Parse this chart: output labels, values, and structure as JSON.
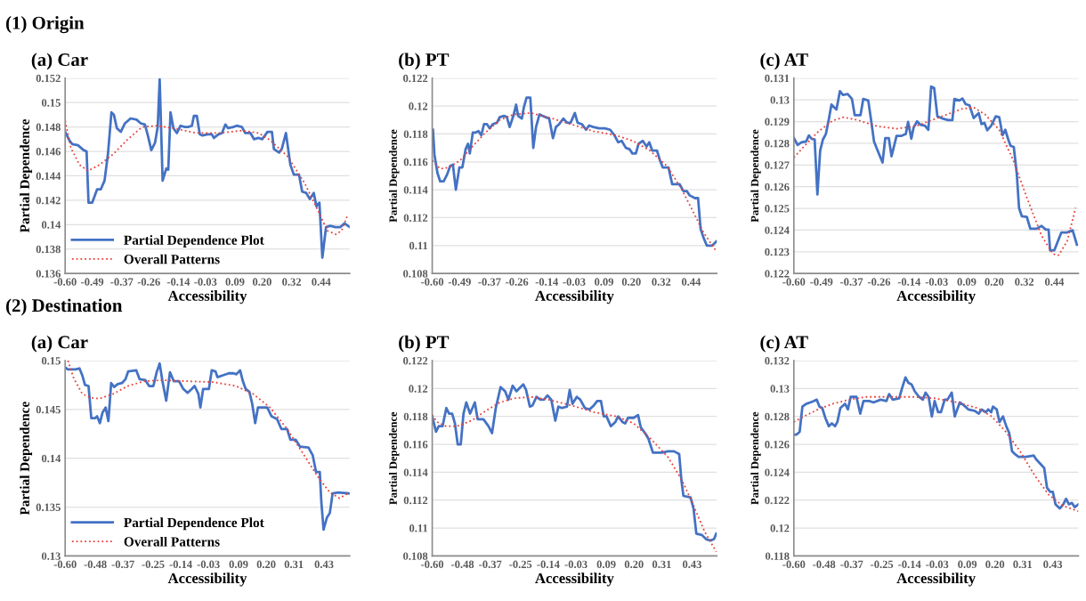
{
  "chart_data": [
    {
      "type": "line",
      "title": "(a) Car",
      "annotations": [
        "(1) Origin"
      ],
      "xlabel": "Accessibility",
      "ylabel": "Partial Dependence",
      "grid": "y",
      "legend": "bottom left",
      "xlim": [
        -0.6,
        0.556
      ],
      "xticks": [
        {
          "value": -0.6,
          "label": "-0.60"
        },
        {
          "value": -0.49,
          "label": "-0.49"
        },
        {
          "value": -0.37,
          "label": "-0.37"
        },
        {
          "value": -0.26,
          "label": "-0.26"
        },
        {
          "value": -0.14,
          "label": "-0.14"
        },
        {
          "value": -0.03,
          "label": "-0.03"
        },
        {
          "value": 0.09,
          "label": "0.09"
        },
        {
          "value": 0.2,
          "label": "0.20"
        },
        {
          "value": 0.32,
          "label": "0.32"
        },
        {
          "value": 0.44,
          "label": "0.44"
        }
      ],
      "ylim": [
        0.136,
        0.152
      ],
      "yticks": [
        0.136,
        0.138,
        0.14,
        0.142,
        0.144,
        0.146,
        0.148,
        0.15,
        0.152
      ],
      "series": [
        {
          "name": "Partial Dependence Plot",
          "color": "#4472c4",
          "line_style": "solid",
          "x": [
            -0.6,
            -0.583,
            -0.571,
            -0.548,
            -0.525,
            -0.513,
            -0.505,
            -0.49,
            -0.47,
            -0.455,
            -0.44,
            -0.426,
            -0.412,
            -0.402,
            -0.39,
            -0.374,
            -0.357,
            -0.334,
            -0.31,
            -0.293,
            -0.276,
            -0.264,
            -0.25,
            -0.235,
            -0.224,
            -0.216,
            -0.204,
            -0.189,
            -0.181,
            -0.172,
            -0.16,
            -0.146,
            -0.131,
            -0.114,
            -0.1,
            -0.085,
            -0.077,
            -0.065,
            -0.053,
            -0.042,
            -0.021,
            -0.004,
            0.004,
            0.023,
            0.037,
            0.051,
            0.062,
            0.083,
            0.097,
            0.118,
            0.132,
            0.153,
            0.167,
            0.185,
            0.201,
            0.222,
            0.24,
            0.248,
            0.269,
            0.28,
            0.297,
            0.315,
            0.329,
            0.35,
            0.363,
            0.379,
            0.394,
            0.41,
            0.421,
            0.433,
            0.445,
            0.46,
            0.477,
            0.498,
            0.518,
            0.535,
            0.556
          ],
          "values": [
            0.1476,
            0.1469,
            0.1466,
            0.1465,
            0.1461,
            0.146,
            0.1418,
            0.1418,
            0.1429,
            0.1429,
            0.1436,
            0.1458,
            0.1492,
            0.149,
            0.1479,
            0.1476,
            0.1483,
            0.1487,
            0.1486,
            0.1483,
            0.1482,
            0.1473,
            0.1461,
            0.1467,
            0.148,
            0.1519,
            0.1436,
            0.1446,
            0.1445,
            0.1492,
            0.1479,
            0.1475,
            0.1481,
            0.148,
            0.148,
            0.1481,
            0.1489,
            0.1489,
            0.1474,
            0.1473,
            0.1474,
            0.1474,
            0.1471,
            0.1474,
            0.1475,
            0.1482,
            0.1479,
            0.148,
            0.1481,
            0.148,
            0.1475,
            0.1475,
            0.147,
            0.1471,
            0.147,
            0.1476,
            0.1476,
            0.1462,
            0.1459,
            0.1462,
            0.1475,
            0.1449,
            0.1441,
            0.1441,
            0.1427,
            0.1426,
            0.1421,
            0.1426,
            0.1415,
            0.1418,
            0.1373,
            0.1398,
            0.1399,
            0.1398,
            0.1398,
            0.1401,
            0.1398
          ]
        },
        {
          "name": "Overall Patterns",
          "color": "#e8403a",
          "line_style": "dotted",
          "x": [
            -0.6,
            -0.577,
            -0.542,
            -0.507,
            -0.461,
            -0.403,
            -0.345,
            -0.287,
            -0.229,
            -0.16,
            -0.067,
            0.025,
            0.118,
            0.187,
            0.234,
            0.303,
            0.373,
            0.431,
            0.465,
            0.5,
            0.523,
            0.546
          ],
          "values": [
            0.1485,
            0.1463,
            0.1449,
            0.1444,
            0.1449,
            0.1458,
            0.147,
            0.148,
            0.1481,
            0.1479,
            0.1475,
            0.1475,
            0.1477,
            0.1475,
            0.1469,
            0.1456,
            0.1434,
            0.141,
            0.1395,
            0.1392,
            0.1395,
            0.1407
          ]
        }
      ]
    },
    {
      "type": "line",
      "title": "(b) PT",
      "xlabel": "Accessibility",
      "ylabel": "Partial Dependence",
      "grid": "y",
      "xlim": [
        -0.6,
        0.543
      ],
      "xticks": [
        {
          "value": -0.6,
          "label": "-0.60"
        },
        {
          "value": -0.49,
          "label": "-0.49"
        },
        {
          "value": -0.37,
          "label": "-0.37"
        },
        {
          "value": -0.26,
          "label": "-0.26"
        },
        {
          "value": -0.14,
          "label": "-0.14"
        },
        {
          "value": -0.03,
          "label": "-0.03"
        },
        {
          "value": 0.09,
          "label": "0.09"
        },
        {
          "value": 0.2,
          "label": "0.20"
        },
        {
          "value": 0.32,
          "label": "0.32"
        },
        {
          "value": 0.44,
          "label": "0.44"
        }
      ],
      "ylim": [
        0.108,
        0.122
      ],
      "yticks": [
        0.108,
        0.11,
        0.112,
        0.114,
        0.116,
        0.118,
        0.12,
        0.122
      ],
      "series": [
        {
          "color": "#4472c4",
          "line_style": "solid",
          "x": [
            -0.597,
            -0.591,
            -0.579,
            -0.568,
            -0.554,
            -0.54,
            -0.528,
            -0.517,
            -0.505,
            -0.491,
            -0.479,
            -0.466,
            -0.456,
            -0.449,
            -0.437,
            -0.426,
            -0.414,
            -0.403,
            -0.392,
            -0.38,
            -0.369,
            -0.357,
            -0.34,
            -0.329,
            -0.312,
            -0.3,
            -0.289,
            -0.274,
            -0.263,
            -0.255,
            -0.24,
            -0.232,
            -0.221,
            -0.206,
            -0.194,
            -0.183,
            -0.169,
            -0.158,
            -0.144,
            -0.13,
            -0.115,
            -0.103,
            -0.09,
            -0.073,
            -0.058,
            -0.044,
            -0.027,
            -0.016,
            0.001,
            0.018,
            0.03,
            0.047,
            0.07,
            0.093,
            0.115,
            0.132,
            0.147,
            0.161,
            0.178,
            0.193,
            0.204,
            0.218,
            0.229,
            0.246,
            0.261,
            0.272,
            0.284,
            0.303,
            0.315,
            0.326,
            0.349,
            0.364,
            0.394,
            0.409,
            0.423,
            0.434,
            0.455,
            0.468,
            0.478,
            0.489,
            0.503,
            0.525,
            0.542
          ],
          "values": [
            0.1183,
            0.1165,
            0.1152,
            0.1146,
            0.1146,
            0.1151,
            0.1157,
            0.1158,
            0.114,
            0.1156,
            0.1156,
            0.1169,
            0.1173,
            0.1166,
            0.1181,
            0.1181,
            0.1182,
            0.1179,
            0.1187,
            0.1187,
            0.1184,
            0.1187,
            0.1188,
            0.1192,
            0.1193,
            0.1192,
            0.1185,
            0.1193,
            0.1201,
            0.1193,
            0.1191,
            0.1199,
            0.1206,
            0.1206,
            0.117,
            0.1185,
            0.1194,
            0.1193,
            0.1192,
            0.1191,
            0.1177,
            0.1185,
            0.1187,
            0.1191,
            0.1188,
            0.1188,
            0.1195,
            0.1188,
            0.1187,
            0.1183,
            0.1186,
            0.1185,
            0.1184,
            0.1184,
            0.1183,
            0.1179,
            0.1174,
            0.1175,
            0.117,
            0.1169,
            0.1166,
            0.1166,
            0.1173,
            0.1175,
            0.1171,
            0.1174,
            0.1168,
            0.1168,
            0.1161,
            0.1156,
            0.1156,
            0.1144,
            0.1144,
            0.1139,
            0.1139,
            0.1136,
            0.1134,
            0.1134,
            0.1112,
            0.1106,
            0.11,
            0.11,
            0.1103
          ]
        },
        {
          "color": "#e8403a",
          "line_style": "dotted",
          "x": [
            -0.6,
            -0.568,
            -0.534,
            -0.488,
            -0.443,
            -0.386,
            -0.329,
            -0.272,
            -0.204,
            -0.135,
            -0.044,
            0.047,
            0.138,
            0.206,
            0.275,
            0.343,
            0.4,
            0.446,
            0.491,
            0.537
          ],
          "values": [
            0.1161,
            0.1155,
            0.1156,
            0.1161,
            0.117,
            0.1181,
            0.119,
            0.1194,
            0.1195,
            0.1192,
            0.1187,
            0.1182,
            0.1179,
            0.1175,
            0.1168,
            0.1157,
            0.1141,
            0.1125,
            0.1109,
            0.1097
          ]
        }
      ]
    },
    {
      "type": "line",
      "title": "(c) AT",
      "xlabel": "Accessibility",
      "ylabel": "Partial Dependence",
      "grid": "y",
      "xlim": [
        -0.6,
        0.536
      ],
      "xticks": [
        {
          "value": -0.6,
          "label": "-0.60"
        },
        {
          "value": -0.49,
          "label": "-0.49"
        },
        {
          "value": -0.37,
          "label": "-0.37"
        },
        {
          "value": -0.26,
          "label": "-0.26"
        },
        {
          "value": -0.14,
          "label": "-0.14"
        },
        {
          "value": -0.03,
          "label": "-0.03"
        },
        {
          "value": 0.09,
          "label": "0.09"
        },
        {
          "value": 0.2,
          "label": "0.20"
        },
        {
          "value": 0.32,
          "label": "0.32"
        },
        {
          "value": 0.44,
          "label": "0.44"
        }
      ],
      "ylim": [
        0.122,
        0.131
      ],
      "yticks": [
        0.122,
        0.123,
        0.124,
        0.125,
        0.126,
        0.127,
        0.128,
        0.129,
        0.13,
        0.131
      ],
      "series": [
        {
          "color": "#4472c4",
          "line_style": "solid",
          "x": [
            -0.6,
            -0.585,
            -0.57,
            -0.551,
            -0.54,
            -0.529,
            -0.517,
            -0.506,
            -0.495,
            -0.484,
            -0.472,
            -0.461,
            -0.45,
            -0.43,
            -0.416,
            -0.404,
            -0.385,
            -0.368,
            -0.357,
            -0.334,
            -0.323,
            -0.303,
            -0.291,
            -0.28,
            -0.261,
            -0.246,
            -0.235,
            -0.221,
            -0.21,
            -0.19,
            -0.17,
            -0.153,
            -0.144,
            -0.131,
            -0.122,
            -0.108,
            -0.095,
            -0.077,
            -0.063,
            -0.052,
            -0.04,
            -0.027,
            -0.007,
            0.016,
            0.033,
            0.041,
            0.061,
            0.073,
            0.086,
            0.101,
            0.118,
            0.138,
            0.149,
            0.161,
            0.172,
            0.188,
            0.206,
            0.22,
            0.233,
            0.244,
            0.256,
            0.265,
            0.278,
            0.29,
            0.299,
            0.31,
            0.33,
            0.344,
            0.369,
            0.389,
            0.406,
            0.417,
            0.423,
            0.44,
            0.468,
            0.491,
            0.513,
            0.53
          ],
          "values": [
            0.12824,
            0.12792,
            0.12804,
            0.12808,
            0.12836,
            0.1282,
            0.12817,
            0.12564,
            0.12766,
            0.12817,
            0.12843,
            0.12907,
            0.12978,
            0.12955,
            0.1304,
            0.13023,
            0.13027,
            0.13004,
            0.12929,
            0.12929,
            0.13004,
            0.12997,
            0.12901,
            0.12808,
            0.12753,
            0.12711,
            0.12824,
            0.12824,
            0.1274,
            0.12834,
            0.12834,
            0.12843,
            0.12898,
            0.12821,
            0.12872,
            0.12901,
            0.12885,
            0.12881,
            0.12862,
            0.13061,
            0.13055,
            0.12924,
            0.12914,
            0.12907,
            0.12907,
            0.13004,
            0.12997,
            0.13006,
            0.1298,
            0.12975,
            0.12916,
            0.12939,
            0.12888,
            0.12894,
            0.1286,
            0.12881,
            0.12924,
            0.1292,
            0.12837,
            0.12862,
            0.12817,
            0.12788,
            0.12783,
            0.12659,
            0.12502,
            0.12464,
            0.12461,
            0.12406,
            0.12406,
            0.12419,
            0.12402,
            0.12402,
            0.12307,
            0.12307,
            0.12389,
            0.12389,
            0.12399,
            0.12333
          ]
        },
        {
          "color": "#e8403a",
          "line_style": "dotted",
          "x": [
            -0.6,
            -0.56,
            -0.504,
            -0.447,
            -0.402,
            -0.346,
            -0.267,
            -0.187,
            -0.108,
            -0.018,
            0.073,
            0.118,
            0.163,
            0.22,
            0.276,
            0.333,
            0.389,
            0.434,
            0.457,
            0.491,
            0.525
          ],
          "values": [
            0.12734,
            0.12785,
            0.12852,
            0.12903,
            0.1292,
            0.12907,
            0.12878,
            0.12867,
            0.12881,
            0.1292,
            0.12959,
            0.12965,
            0.12933,
            0.12862,
            0.12721,
            0.12541,
            0.12374,
            0.1229,
            0.12284,
            0.12348,
            0.12502
          ]
        }
      ]
    },
    {
      "type": "line",
      "title": "(a) Car",
      "annotations": [
        "(2) Destination"
      ],
      "xlabel": "Accessibility",
      "ylabel": "Partial Dependence",
      "grid": "y",
      "legend": "bottom left",
      "xlim": [
        -0.6,
        0.532
      ],
      "xticks": [
        {
          "value": -0.6,
          "label": "-0.60"
        },
        {
          "value": -0.48,
          "label": "-0.48"
        },
        {
          "value": -0.37,
          "label": "-0.37"
        },
        {
          "value": -0.25,
          "label": "-0.25"
        },
        {
          "value": -0.14,
          "label": "-0.14"
        },
        {
          "value": -0.03,
          "label": "-0.03"
        },
        {
          "value": 0.09,
          "label": "0.09"
        },
        {
          "value": 0.2,
          "label": "0.20"
        },
        {
          "value": 0.31,
          "label": "0.31"
        },
        {
          "value": 0.43,
          "label": "0.43"
        }
      ],
      "ylim": [
        0.13,
        0.15
      ],
      "yticks": [
        0.13,
        0.135,
        0.14,
        0.145,
        0.15
      ],
      "series": [
        {
          "name": "Partial Dependence Plot",
          "color": "#4472c4",
          "line_style": "solid",
          "x": [
            -0.6,
            -0.589,
            -0.56,
            -0.543,
            -0.532,
            -0.521,
            -0.507,
            -0.496,
            -0.481,
            -0.473,
            -0.462,
            -0.451,
            -0.439,
            -0.428,
            -0.417,
            -0.405,
            -0.391,
            -0.374,
            -0.36,
            -0.349,
            -0.317,
            -0.304,
            -0.281,
            -0.266,
            -0.249,
            -0.236,
            -0.224,
            -0.213,
            -0.198,
            -0.183,
            -0.168,
            -0.147,
            -0.13,
            -0.113,
            -0.096,
            -0.085,
            -0.07,
            -0.062,
            -0.051,
            -0.028,
            -0.017,
            -0.002,
            0.006,
            0.028,
            0.051,
            0.07,
            0.081,
            0.096,
            0.107,
            0.118,
            0.133,
            0.144,
            0.156,
            0.167,
            0.204,
            0.221,
            0.243,
            0.26,
            0.283,
            0.296,
            0.317,
            0.334,
            0.368,
            0.385,
            0.398,
            0.413,
            0.419,
            0.428,
            0.441,
            0.453,
            0.464,
            0.487,
            0.53
          ],
          "values": [
            0.1493,
            0.1491,
            0.1491,
            0.1492,
            0.1485,
            0.1475,
            0.1474,
            0.1441,
            0.1441,
            0.1443,
            0.1436,
            0.1447,
            0.1452,
            0.1438,
            0.1477,
            0.1473,
            0.1476,
            0.1477,
            0.1481,
            0.1489,
            0.149,
            0.1481,
            0.148,
            0.1474,
            0.1474,
            0.1488,
            0.1497,
            0.1479,
            0.1459,
            0.1488,
            0.1479,
            0.1479,
            0.1471,
            0.1467,
            0.1471,
            0.1474,
            0.1466,
            0.1452,
            0.1471,
            0.1471,
            0.149,
            0.1489,
            0.1483,
            0.1485,
            0.1487,
            0.1487,
            0.1486,
            0.149,
            0.1479,
            0.1471,
            0.1468,
            0.1456,
            0.1436,
            0.1452,
            0.1452,
            0.1443,
            0.144,
            0.143,
            0.143,
            0.1419,
            0.1419,
            0.1412,
            0.1411,
            0.1403,
            0.1386,
            0.1386,
            0.1356,
            0.1327,
            0.1339,
            0.1344,
            0.1364,
            0.1365,
            0.1364
          ]
        },
        {
          "name": "Overall Patterns",
          "color": "#e8403a",
          "line_style": "dotted",
          "x": [
            -0.589,
            -0.566,
            -0.532,
            -0.498,
            -0.464,
            -0.408,
            -0.351,
            -0.283,
            -0.215,
            -0.125,
            -0.011,
            0.079,
            0.147,
            0.215,
            0.283,
            0.351,
            0.408,
            0.453,
            0.492,
            0.53
          ],
          "values": [
            0.15,
            0.1482,
            0.1466,
            0.1462,
            0.1461,
            0.1466,
            0.1474,
            0.1479,
            0.148,
            0.1479,
            0.1478,
            0.1474,
            0.1466,
            0.1452,
            0.143,
            0.1403,
            0.138,
            0.1365,
            0.1359,
            0.1365
          ]
        }
      ]
    },
    {
      "type": "line",
      "title": "(b) PT",
      "xlabel": "Accessibility",
      "ylabel": "Partial Dependence",
      "grid": "y",
      "xlim": [
        -0.6,
        0.528
      ],
      "xticks": [
        {
          "value": -0.6,
          "label": "-0.60"
        },
        {
          "value": -0.48,
          "label": "-0.48"
        },
        {
          "value": -0.37,
          "label": "-0.37"
        },
        {
          "value": -0.25,
          "label": "-0.25"
        },
        {
          "value": -0.14,
          "label": "-0.14"
        },
        {
          "value": -0.03,
          "label": "-0.03"
        },
        {
          "value": 0.09,
          "label": "0.09"
        },
        {
          "value": 0.2,
          "label": "0.20"
        },
        {
          "value": 0.31,
          "label": "0.31"
        },
        {
          "value": 0.43,
          "label": "0.43"
        }
      ],
      "ylim": [
        0.108,
        0.122
      ],
      "yticks": [
        0.108,
        0.11,
        0.112,
        0.114,
        0.116,
        0.118,
        0.12,
        0.122
      ],
      "series": [
        {
          "color": "#4472c4",
          "line_style": "solid",
          "x": [
            -0.6,
            -0.585,
            -0.574,
            -0.559,
            -0.544,
            -0.533,
            -0.521,
            -0.51,
            -0.499,
            -0.487,
            -0.476,
            -0.465,
            -0.45,
            -0.431,
            -0.42,
            -0.397,
            -0.377,
            -0.363,
            -0.348,
            -0.329,
            -0.311,
            -0.298,
            -0.281,
            -0.266,
            -0.255,
            -0.239,
            -0.228,
            -0.213,
            -0.202,
            -0.187,
            -0.171,
            -0.157,
            -0.143,
            -0.128,
            -0.112,
            -0.1,
            -0.086,
            -0.066,
            -0.055,
            -0.044,
            -0.027,
            -0.013,
            0.005,
            0.024,
            0.041,
            0.054,
            0.069,
            0.08,
            0.091,
            0.108,
            0.126,
            0.137,
            0.154,
            0.165,
            0.176,
            0.199,
            0.216,
            0.227,
            0.244,
            0.257,
            0.275,
            0.295,
            0.311,
            0.334,
            0.359,
            0.379,
            0.388,
            0.396,
            0.424,
            0.436,
            0.447,
            0.469,
            0.486,
            0.503,
            0.517,
            0.526
          ],
          "values": [
            0.118,
            0.1169,
            0.1173,
            0.1173,
            0.1186,
            0.1182,
            0.1182,
            0.1175,
            0.116,
            0.116,
            0.1182,
            0.119,
            0.1182,
            0.119,
            0.1178,
            0.1178,
            0.1173,
            0.1168,
            0.1186,
            0.1201,
            0.1198,
            0.1192,
            0.1202,
            0.1198,
            0.12,
            0.1203,
            0.1199,
            0.1187,
            0.1188,
            0.1194,
            0.1192,
            0.1192,
            0.1195,
            0.1192,
            0.1177,
            0.1187,
            0.1186,
            0.1187,
            0.1199,
            0.1189,
            0.1194,
            0.1192,
            0.1186,
            0.1185,
            0.1188,
            0.1191,
            0.1191,
            0.118,
            0.118,
            0.1173,
            0.1176,
            0.118,
            0.1176,
            0.1175,
            0.1179,
            0.1179,
            0.1181,
            0.1172,
            0.1168,
            0.1164,
            0.1154,
            0.1154,
            0.1154,
            0.1155,
            0.1155,
            0.1153,
            0.1134,
            0.1123,
            0.1122,
            0.1114,
            0.1096,
            0.1095,
            0.1092,
            0.1091,
            0.1092,
            0.1096
          ]
        },
        {
          "color": "#e8403a",
          "line_style": "dotted",
          "x": [
            -0.6,
            -0.58,
            -0.546,
            -0.501,
            -0.444,
            -0.388,
            -0.332,
            -0.275,
            -0.207,
            -0.14,
            -0.05,
            0.041,
            0.131,
            0.199,
            0.266,
            0.334,
            0.391,
            0.436,
            0.481,
            0.526
          ],
          "values": [
            0.1181,
            0.1176,
            0.1173,
            0.1173,
            0.1177,
            0.1184,
            0.119,
            0.1193,
            0.1194,
            0.1192,
            0.1188,
            0.1183,
            0.118,
            0.1175,
            0.1164,
            0.1151,
            0.1134,
            0.1116,
            0.1097,
            0.1083
          ]
        }
      ]
    },
    {
      "type": "line",
      "title": "(c) AT",
      "xlabel": "Accessibility",
      "ylabel": "Partial Dependence",
      "grid": "y",
      "xlim": [
        -0.6,
        0.532
      ],
      "xticks": [
        {
          "value": -0.6,
          "label": "-0.60"
        },
        {
          "value": -0.48,
          "label": "-0.48"
        },
        {
          "value": -0.37,
          "label": "-0.37"
        },
        {
          "value": -0.25,
          "label": "-0.25"
        },
        {
          "value": -0.14,
          "label": "-0.14"
        },
        {
          "value": -0.03,
          "label": "-0.03"
        },
        {
          "value": 0.09,
          "label": "0.09"
        },
        {
          "value": 0.2,
          "label": "0.20"
        },
        {
          "value": 0.31,
          "label": "0.31"
        },
        {
          "value": 0.43,
          "label": "0.43"
        }
      ],
      "ylim": [
        0.118,
        0.132
      ],
      "yticks": [
        0.118,
        0.12,
        0.122,
        0.124,
        0.126,
        0.128,
        0.13,
        0.132
      ],
      "series": [
        {
          "color": "#4472c4",
          "line_style": "solid",
          "x": [
            -0.6,
            -0.589,
            -0.577,
            -0.566,
            -0.551,
            -0.535,
            -0.521,
            -0.509,
            -0.498,
            -0.487,
            -0.475,
            -0.461,
            -0.449,
            -0.436,
            -0.427,
            -0.415,
            -0.396,
            -0.385,
            -0.374,
            -0.351,
            -0.336,
            -0.323,
            -0.3,
            -0.283,
            -0.255,
            -0.232,
            -0.221,
            -0.207,
            -0.181,
            -0.17,
            -0.156,
            -0.144,
            -0.132,
            -0.119,
            -0.102,
            -0.087,
            -0.076,
            -0.064,
            -0.051,
            -0.04,
            -0.026,
            -0.015,
            0.0,
            0.011,
            0.028,
            0.04,
            0.06,
            0.076,
            0.094,
            0.119,
            0.136,
            0.147,
            0.164,
            0.173,
            0.185,
            0.192,
            0.207,
            0.218,
            0.232,
            0.245,
            0.257,
            0.268,
            0.279,
            0.294,
            0.323,
            0.354,
            0.365,
            0.381,
            0.396,
            0.407,
            0.419,
            0.43,
            0.441,
            0.458,
            0.472,
            0.483,
            0.494,
            0.506,
            0.517,
            0.532
          ],
          "values": [
            0.1267,
            0.1267,
            0.1269,
            0.1287,
            0.1289,
            0.129,
            0.1291,
            0.1292,
            0.1287,
            0.1286,
            0.1279,
            0.1273,
            0.1275,
            0.1273,
            0.1276,
            0.1286,
            0.1289,
            0.1285,
            0.1294,
            0.1294,
            0.1282,
            0.1291,
            0.1291,
            0.129,
            0.1292,
            0.1291,
            0.1296,
            0.1292,
            0.1293,
            0.13,
            0.1308,
            0.1304,
            0.1303,
            0.1298,
            0.1294,
            0.1292,
            0.1297,
            0.1294,
            0.128,
            0.1291,
            0.1283,
            0.1283,
            0.1292,
            0.1292,
            0.1297,
            0.128,
            0.129,
            0.1288,
            0.1285,
            0.1284,
            0.1282,
            0.1285,
            0.1283,
            0.1285,
            0.1283,
            0.1287,
            0.1285,
            0.1276,
            0.128,
            0.1273,
            0.1268,
            0.1255,
            0.1253,
            0.1251,
            0.1251,
            0.1252,
            0.1249,
            0.1246,
            0.1243,
            0.1229,
            0.1226,
            0.1226,
            0.1217,
            0.1214,
            0.1217,
            0.1221,
            0.1217,
            0.1218,
            0.1215,
            0.1217
          ]
        },
        {
          "color": "#e8403a",
          "line_style": "dotted",
          "x": [
            -0.6,
            -0.56,
            -0.504,
            -0.447,
            -0.379,
            -0.311,
            -0.221,
            -0.13,
            -0.04,
            0.051,
            0.13,
            0.187,
            0.243,
            0.3,
            0.357,
            0.413,
            0.47,
            0.532
          ],
          "values": [
            0.1276,
            0.128,
            0.1285,
            0.1289,
            0.1292,
            0.1294,
            0.1294,
            0.1294,
            0.1293,
            0.129,
            0.1286,
            0.128,
            0.1269,
            0.1255,
            0.1238,
            0.1224,
            0.1216,
            0.1212
          ]
        }
      ]
    }
  ]
}
